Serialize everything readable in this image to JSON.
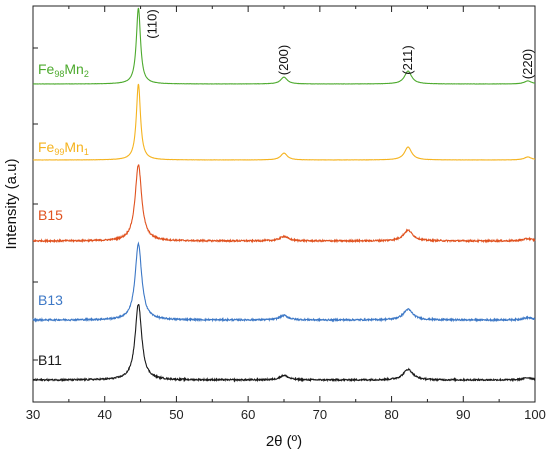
{
  "chart_data": {
    "type": "line",
    "title": "",
    "xlabel": "2θ (º)",
    "ylabel": "Intensity (a.u)",
    "xlim": [
      30,
      100
    ],
    "x_ticks": [
      30,
      40,
      50,
      60,
      70,
      80,
      90,
      100
    ],
    "y_ticks_labeled": false,
    "grid": false,
    "legend": "inline labels at left of each pattern",
    "peak_labels": [
      {
        "text": "(110)",
        "x": 44.7
      },
      {
        "text": "(200)",
        "x": 65.0
      },
      {
        "text": "(211)",
        "x": 82.3
      },
      {
        "text": "(220)",
        "x": 99.0
      }
    ],
    "series": [
      {
        "name": "Fe98Mn2",
        "label_main": "Fe",
        "label_sub1": "98",
        "label_mid": "Mn",
        "label_sub2": "2",
        "color": "#4daa2e",
        "noise": 0.0015,
        "peaks": [
          {
            "pos": 44.7,
            "height": 1.0,
            "width": 0.35
          },
          {
            "pos": 65.0,
            "height": 0.09,
            "width": 0.55
          },
          {
            "pos": 82.3,
            "height": 0.17,
            "width": 0.6
          },
          {
            "pos": 99.0,
            "height": 0.04,
            "width": 0.6
          }
        ]
      },
      {
        "name": "Fe99Mn1",
        "label_main": "Fe",
        "label_sub1": "99",
        "label_mid": "Mn",
        "label_sub2": "1",
        "color": "#f5b31f",
        "noise": 0.0015,
        "peaks": [
          {
            "pos": 44.7,
            "height": 1.0,
            "width": 0.35
          },
          {
            "pos": 65.0,
            "height": 0.09,
            "width": 0.55
          },
          {
            "pos": 82.3,
            "height": 0.17,
            "width": 0.6
          },
          {
            "pos": 99.0,
            "height": 0.04,
            "width": 0.6
          }
        ]
      },
      {
        "name": "B15",
        "color": "#e0521f",
        "noise": 0.01,
        "peaks": [
          {
            "pos": 44.7,
            "height": 1.0,
            "width": 0.55
          },
          {
            "pos": 65.0,
            "height": 0.06,
            "width": 0.7
          },
          {
            "pos": 82.3,
            "height": 0.14,
            "width": 0.8
          },
          {
            "pos": 99.0,
            "height": 0.03,
            "width": 0.8
          }
        ]
      },
      {
        "name": "B13",
        "color": "#3d78c6",
        "noise": 0.01,
        "peaks": [
          {
            "pos": 44.7,
            "height": 1.0,
            "width": 0.55
          },
          {
            "pos": 65.0,
            "height": 0.06,
            "width": 0.7
          },
          {
            "pos": 82.3,
            "height": 0.14,
            "width": 0.8
          },
          {
            "pos": 99.0,
            "height": 0.03,
            "width": 0.8
          }
        ]
      },
      {
        "name": "B11",
        "color": "#1a1a1a",
        "noise": 0.01,
        "peaks": [
          {
            "pos": 44.7,
            "height": 1.0,
            "width": 0.55
          },
          {
            "pos": 65.0,
            "height": 0.06,
            "width": 0.7
          },
          {
            "pos": 82.3,
            "height": 0.14,
            "width": 0.8
          },
          {
            "pos": 99.0,
            "height": 0.03,
            "width": 0.8
          }
        ]
      }
    ]
  }
}
